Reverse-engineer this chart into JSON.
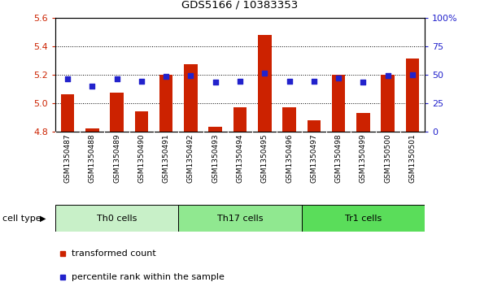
{
  "title": "GDS5166 / 10383353",
  "samples": [
    "GSM1350487",
    "GSM1350488",
    "GSM1350489",
    "GSM1350490",
    "GSM1350491",
    "GSM1350492",
    "GSM1350493",
    "GSM1350494",
    "GSM1350495",
    "GSM1350496",
    "GSM1350497",
    "GSM1350498",
    "GSM1350499",
    "GSM1350500",
    "GSM1350501"
  ],
  "transformed_count": [
    5.06,
    4.82,
    5.07,
    4.94,
    5.2,
    5.27,
    4.83,
    4.97,
    5.48,
    4.97,
    4.88,
    5.2,
    4.93,
    5.2,
    5.31
  ],
  "percentile_rank": [
    46,
    40,
    46,
    44,
    48,
    49,
    43,
    44,
    51,
    44,
    44,
    47,
    43,
    49,
    50
  ],
  "cell_groups": [
    {
      "label": "Th0 cells",
      "start": 0,
      "end": 5,
      "color": "#c8f0c8"
    },
    {
      "label": "Th17 cells",
      "start": 5,
      "end": 10,
      "color": "#90e890"
    },
    {
      "label": "Tr1 cells",
      "start": 10,
      "end": 15,
      "color": "#5add5a"
    }
  ],
  "ylim_left": [
    4.8,
    5.6
  ],
  "ylim_right": [
    0,
    100
  ],
  "yticks_left": [
    4.8,
    5.0,
    5.2,
    5.4,
    5.6
  ],
  "yticks_right": [
    0,
    25,
    50,
    75,
    100
  ],
  "ytick_labels_right": [
    "0",
    "25",
    "50",
    "75",
    "100%"
  ],
  "bar_color": "#cc2200",
  "scatter_color": "#2222cc",
  "sample_bg_color": "#c8c8c8",
  "plot_bg_color": "#ffffff",
  "legend_items": [
    {
      "label": "transformed count",
      "color": "#cc2200"
    },
    {
      "label": "percentile rank within the sample",
      "color": "#2222cc"
    }
  ],
  "cell_type_label": "cell type"
}
